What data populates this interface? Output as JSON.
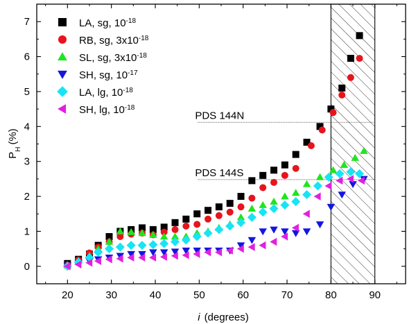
{
  "chart_data": {
    "type": "scatter",
    "xlabel_italic": "i",
    "xlabel_rest": "(degrees)",
    "ylabel_main": "P",
    "ylabel_sub": "H",
    "ylabel_rest": "(%)",
    "xlim": [
      13,
      97
    ],
    "ylim": [
      -0.5,
      7.5
    ],
    "x_ticks": [
      20,
      30,
      40,
      50,
      60,
      70,
      80,
      90
    ],
    "x_tick_labels": [
      "20",
      "30",
      "40",
      "50",
      "60",
      "70",
      "80",
      "90"
    ],
    "y_ticks": [
      0,
      1,
      2,
      3,
      4,
      5,
      6,
      7
    ],
    "y_tick_labels": [
      "0",
      "1",
      "2",
      "3",
      "4",
      "5",
      "6",
      "7"
    ],
    "hatched_region": {
      "x_from": 80,
      "x_to": 90
    },
    "reference_lines": [
      {
        "label": "PDS 144N",
        "y": 4.12,
        "x_from": 50,
        "x_to": 90
      },
      {
        "label": "PDS 144S",
        "y": 2.48,
        "x_from": 50,
        "x_to": 90
      }
    ],
    "series": [
      {
        "name": "LA, sg, ",
        "exp_base": "10",
        "exponent": "-18",
        "marker": "square",
        "color": "#000000",
        "x": [
          20,
          22.5,
          25,
          27,
          29.5,
          32,
          34.5,
          37,
          39.5,
          42,
          44.5,
          47,
          49.5,
          52,
          54.5,
          57,
          59.5,
          62,
          64.5,
          67,
          69.5,
          72,
          74.5,
          77.5,
          80,
          82.5,
          84.5,
          86.5
        ],
        "y": [
          0.08,
          0.2,
          0.35,
          0.6,
          0.85,
          1.0,
          1.05,
          1.1,
          1.05,
          1.12,
          1.25,
          1.35,
          1.5,
          1.6,
          1.7,
          1.8,
          2.0,
          2.45,
          2.6,
          2.75,
          2.9,
          3.2,
          3.55,
          4.0,
          4.5,
          5.1,
          5.95,
          6.6
        ]
      },
      {
        "name": "RB, sg, 3x",
        "exp_base": "10",
        "exponent": "-18",
        "marker": "circle",
        "color": "#e8141d",
        "x": [
          20,
          22.5,
          25,
          27,
          29.5,
          32,
          34.5,
          37,
          39.5,
          42,
          44.5,
          47,
          49.5,
          52,
          54.5,
          57,
          59.5,
          62,
          64.5,
          67,
          69.5,
          72,
          75.5,
          78,
          80.5,
          82.5,
          84.5,
          86.5
        ],
        "y": [
          0.04,
          0.18,
          0.38,
          0.55,
          0.7,
          0.85,
          0.92,
          0.95,
          0.9,
          0.98,
          1.05,
          1.15,
          1.2,
          1.35,
          1.45,
          1.55,
          1.7,
          1.95,
          2.25,
          2.4,
          2.6,
          2.8,
          3.45,
          3.9,
          4.4,
          4.9,
          5.4,
          5.95
        ]
      },
      {
        "name": "SL, sg, 3x",
        "exp_base": "10",
        "exponent": "-18",
        "marker": "triangle-up",
        "color": "#1ee61e",
        "x": [
          20,
          22.5,
          25,
          27,
          29.5,
          32,
          34.5,
          37,
          39.5,
          42,
          44.5,
          47,
          49.5,
          52,
          54.5,
          57,
          59.5,
          62,
          64.5,
          67,
          69.5,
          72,
          74.5,
          77.5,
          80.5,
          83,
          85.5,
          87.5
        ],
        "y": [
          0.02,
          0.15,
          0.3,
          0.5,
          0.7,
          1.0,
          0.98,
          0.95,
          0.9,
          0.85,
          0.85,
          0.85,
          0.95,
          1.0,
          1.1,
          1.2,
          1.4,
          1.65,
          1.75,
          1.85,
          2.0,
          2.1,
          2.35,
          2.55,
          2.75,
          2.9,
          3.1,
          3.3
        ]
      },
      {
        "name": "SH, sg, ",
        "exp_base": "10",
        "exponent": "-17",
        "marker": "triangle-down",
        "color": "#1515e0",
        "x": [
          20,
          22.5,
          25,
          27,
          29.5,
          32,
          34.5,
          37,
          39.5,
          42,
          44.5,
          47,
          49.5,
          52,
          54.5,
          57,
          59.5,
          62,
          64.5,
          67,
          69.5,
          72,
          74.5,
          77.5,
          80,
          82.5,
          85,
          87.5
        ],
        "y": [
          0.02,
          0.1,
          0.15,
          0.2,
          0.25,
          0.3,
          0.35,
          0.35,
          0.4,
          0.4,
          0.42,
          0.45,
          0.45,
          0.45,
          0.45,
          0.45,
          0.6,
          0.75,
          1.0,
          1.05,
          1.0,
          0.95,
          1.0,
          1.2,
          1.7,
          2.05,
          2.35,
          2.5
        ]
      },
      {
        "name": "LA, lg, ",
        "exp_base": "10",
        "exponent": "-18",
        "marker": "diamond",
        "color": "#18e4f5",
        "x": [
          20,
          22.5,
          25,
          27,
          29.5,
          32,
          34.5,
          37,
          39.5,
          42,
          44.5,
          47,
          49.5,
          52,
          54.5,
          57,
          59.5,
          62,
          64.5,
          67,
          69.5,
          72,
          74.5,
          77,
          79.5,
          82,
          84.5,
          86.5
        ],
        "y": [
          0.0,
          0.12,
          0.25,
          0.4,
          0.5,
          0.55,
          0.6,
          0.6,
          0.62,
          0.65,
          0.7,
          0.75,
          0.85,
          0.95,
          1.05,
          1.15,
          1.25,
          1.4,
          1.55,
          1.65,
          1.75,
          1.85,
          2.05,
          2.3,
          2.55,
          2.65,
          2.7,
          2.65
        ]
      },
      {
        "name": "SH, lg, ",
        "exp_base": "10",
        "exponent": "-18",
        "marker": "triangle-left",
        "color": "#e020e0",
        "x": [
          20,
          22.5,
          25,
          27,
          29.5,
          32,
          34.5,
          37,
          39.5,
          42,
          44.5,
          47,
          49.5,
          52,
          54.5,
          57,
          59.5,
          62,
          64.5,
          67,
          69.5,
          72,
          74.5,
          77,
          79.5,
          82,
          84.5,
          87
        ],
        "y": [
          0.0,
          0.05,
          0.1,
          0.15,
          0.2,
          0.22,
          0.25,
          0.25,
          0.25,
          0.27,
          0.3,
          0.32,
          0.35,
          0.4,
          0.4,
          0.45,
          0.5,
          0.55,
          0.6,
          0.7,
          0.85,
          1.1,
          1.5,
          2.0,
          2.3,
          2.45,
          2.5,
          2.45
        ]
      }
    ]
  }
}
